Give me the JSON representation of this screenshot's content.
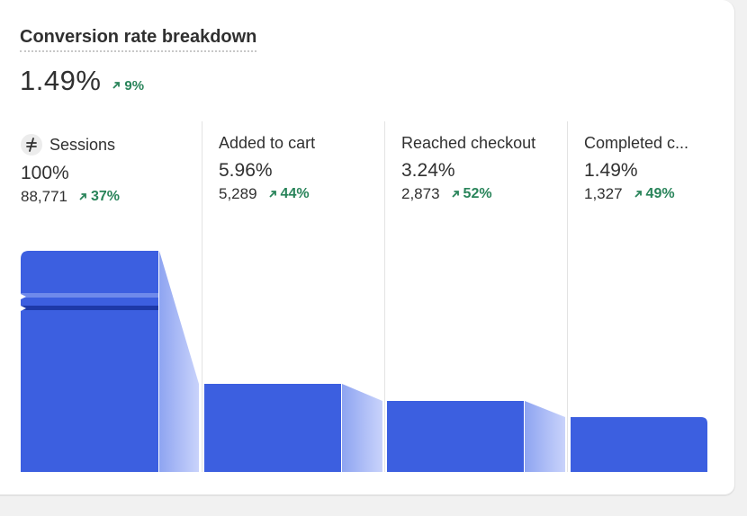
{
  "card": {
    "title": "Conversion rate breakdown",
    "value": "1.49%",
    "change": "9%"
  },
  "stages": [
    {
      "label": "Sessions",
      "percent": "100%",
      "count": "88,771",
      "change": "37%",
      "icon": "sessions-icon"
    },
    {
      "label": "Added to cart",
      "percent": "5.96%",
      "count": "5,289",
      "change": "44%"
    },
    {
      "label": "Reached checkout",
      "percent": "3.24%",
      "count": "2,873",
      "change": "52%"
    },
    {
      "label": "Completed c...",
      "percent": "1.49%",
      "count": "1,327",
      "change": "49%"
    }
  ],
  "colors": {
    "bar": "#3c5fe0",
    "connector_light": "#c9d3fb",
    "connector_dark": "#8ea4f1",
    "trend_up": "#29845a"
  }
}
